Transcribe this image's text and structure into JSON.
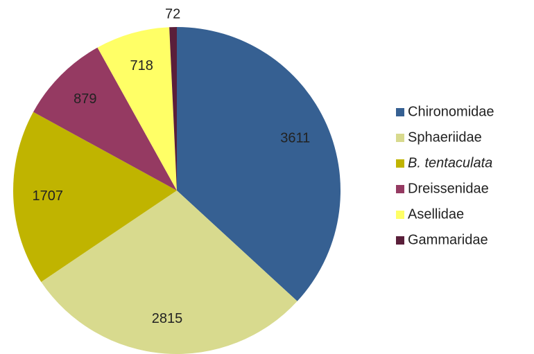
{
  "chart_data": {
    "type": "pie",
    "categories": [
      "Chironomidae",
      "Sphaeriidae",
      "B. tentaculata",
      "Dreissenidae",
      "Asellidae",
      "Gammaridae"
    ],
    "values": [
      3611,
      2815,
      1707,
      879,
      718,
      72
    ],
    "colors": [
      "#366092",
      "#d8da8e",
      "#c0b400",
      "#953a62",
      "#ffff66",
      "#5a1f3a"
    ],
    "legend": "right"
  }
}
